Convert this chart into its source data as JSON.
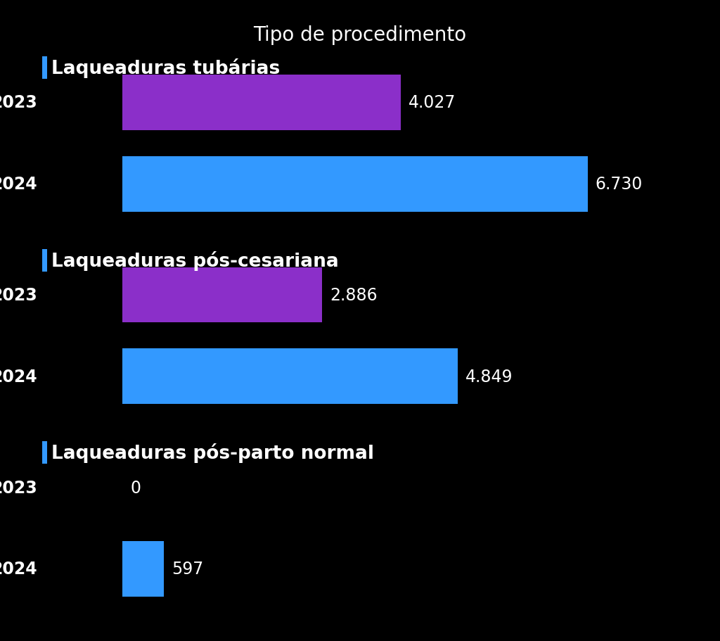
{
  "title": "Tipo de procedimento",
  "categories": [
    "Laqueaduras tubárias",
    "Laqueaduras pós-cesariana",
    "Laqueaduras pós-parto normal"
  ],
  "values_2023": [
    4027,
    2886,
    0
  ],
  "values_2024": [
    6730,
    4849,
    597
  ],
  "color_2023": "#8B2FC9",
  "color_2024": "#3399FF",
  "background_color": "#000000",
  "text_color": "#FFFFFF",
  "title_fontsize": 20,
  "tick_fontsize": 17,
  "value_fontsize": 17,
  "category_fontsize": 19,
  "max_value": 7500
}
